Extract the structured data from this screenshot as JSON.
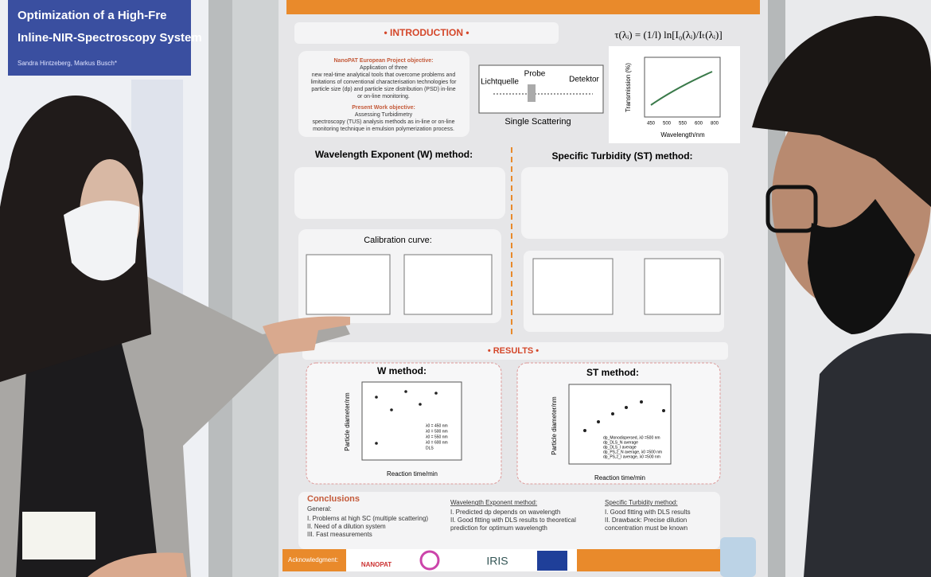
{
  "left_poster": {
    "title_lines": [
      "Optimization of a High-Fre",
      "Inline-NIR-Spectroscopy System"
    ],
    "authors": "Sandra Hintzeberg, Markus Busch*"
  },
  "poster": {
    "introduction": {
      "heading": "• INTRODUCTION •",
      "objective_label": "NanoPAT European Project objective:",
      "objective_lines": [
        "Application of three",
        "new real-time analytical tools that overcome problems and",
        "limitations of conventional characterisation technologies for",
        "particle size (dp) and particle size distribution (PSD) in-line",
        "or on-line monitoring."
      ],
      "present_label": "Present Work objective:",
      "present_lines": [
        "Assessing Turbidimetry",
        "spectroscopy (TUS) analysis methods as in-line or on-line",
        "monitoring technique in emulsion polymerization process."
      ]
    },
    "equation": "τ(λᵢ) = (1/l) ln[I₀(λᵢ)/Iₜ(λᵢ)]",
    "diagram": {
      "source": "Lichtquelle",
      "probe": "Probe",
      "detector": "Detektor",
      "caption": "Single Scattering"
    },
    "transmission_chart": {
      "y_label": "Transmission (%)",
      "x_label": "Wavelength/nm",
      "xticks": [
        450,
        500,
        550,
        600,
        800
      ]
    },
    "w_method_heading": "Wavelength Exponent (W) method:",
    "st_method_heading": "Specific Turbidity (ST) method:",
    "calibration_heading": "Calibration curve:",
    "results": {
      "heading": "• RESULTS •",
      "w_title": "W method:",
      "st_title": "ST method:",
      "y_label": "Particle diameter/nm",
      "x_label": "Reaction time/min",
      "w_legend": [
        "λ0 = 450 nm",
        "λ0 = 500 nm",
        "λ0 = 550 nm",
        "λ0 = 600 nm",
        "DLS"
      ],
      "st_legend": [
        "dp_Monodispersed, λ0 =500 nm",
        "dp_DLS_N average",
        "dp_DLS_I average",
        "dp_PS,2_N average, λ0 =500 nm",
        "dp_PS,2_I average, λ0 =500 nm"
      ]
    },
    "conclusions": {
      "heading": "Conclusions",
      "general_label": "General:",
      "general_items": [
        "I.   Problems at high SC (multiple scattering)",
        "II.  Need of a dilution system",
        "III. Fast measurements"
      ],
      "w_label": "Wavelength Exponent method:",
      "w_items": [
        "I.   Predicted dp depends on wavelength",
        "II.  Good fitting with DLS results to theoretical",
        "      prediction for optimum wavelength"
      ],
      "st_label": "Specific Turbidity method:",
      "st_items": [
        "I.   Good fitting with DLS results",
        "II.  Drawback: Precise dilution",
        "      concentration must be known"
      ]
    },
    "acknowledgment": {
      "label": "Acknowledgment:",
      "logos": [
        "NANOPAT",
        "IRIS"
      ]
    }
  }
}
